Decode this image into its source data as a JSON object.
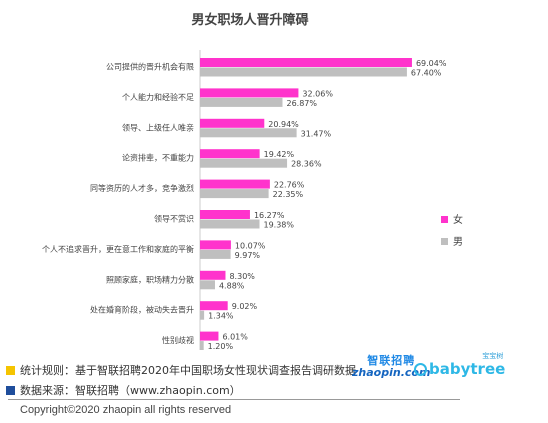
{
  "chart_data": {
    "type": "bar",
    "orientation": "horizontal",
    "title": "男女职场人晋升障碍",
    "categories": [
      "公司提供的晋升机会有限",
      "个人能力和经验不足",
      "领导、上级任人唯亲",
      "论资排辈，不重能力",
      "同等资历的人才多，竞争激烈",
      "领导不赏识",
      "个人不追求晋升，更在意工作和家庭的平衡",
      "照顾家庭，职场精力分散",
      "处在婚育阶段，被动失去晋升",
      "性别歧视"
    ],
    "series": [
      {
        "name": "女",
        "color": "#ff33cc",
        "values": [
          69.04,
          32.06,
          20.94,
          19.42,
          22.76,
          16.27,
          10.07,
          8.3,
          9.02,
          6.01
        ],
        "labels": [
          "69.04%",
          "32.06%",
          "20.94%",
          "19.42%",
          "22.76%",
          "16.27%",
          "10.07%",
          "8.30%",
          "9.02%",
          "6.01%"
        ]
      },
      {
        "name": "男",
        "color": "#bfbfbf",
        "values": [
          67.4,
          26.87,
          31.47,
          28.36,
          22.35,
          19.38,
          9.97,
          4.88,
          1.34,
          1.2
        ],
        "labels": [
          "67.40%",
          "26.87%",
          "31.47%",
          "28.36%",
          "22.35%",
          "19.38%",
          "9.97%",
          "4.88%",
          "1.34%",
          "1.20%"
        ]
      }
    ],
    "xlim": [
      0,
      80
    ],
    "legend_position": "right",
    "grid": false
  },
  "footer": {
    "rule_text": "统计规则：基于智联招聘2020年中国职场女性现状调查报告调研数据",
    "source_text": "数据来源：智联招聘（www.zhaopin.com）",
    "copyright": "Copyright©2020 zhaopin all rights reserved",
    "rule_color": "#f5c400",
    "source_color": "#1f4e9c"
  },
  "logos": {
    "zhaopin_cn": "智联招聘",
    "zhaopin_en": "zhaopin.com",
    "babytree_badge": "宝宝树",
    "babytree_en": "babytree"
  }
}
